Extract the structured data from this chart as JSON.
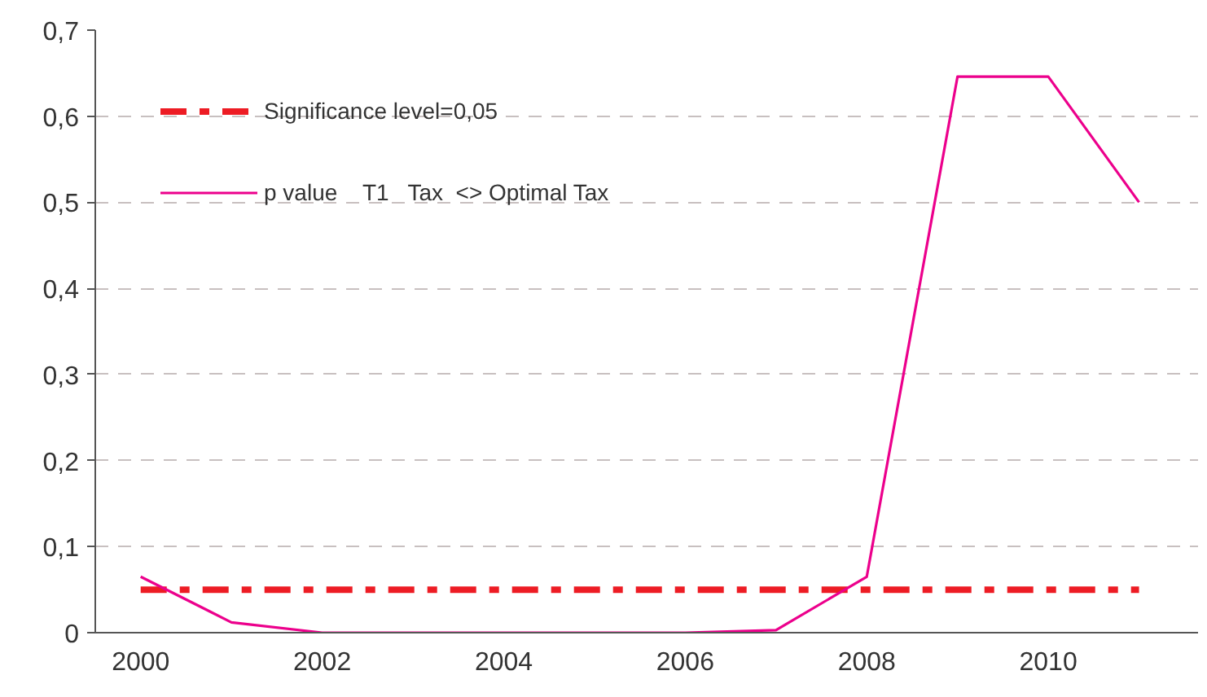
{
  "chart_data": {
    "type": "line",
    "categories": [
      "2000",
      null,
      "2002",
      null,
      "2004",
      null,
      "2006",
      null,
      "2008",
      null,
      "2010",
      null
    ],
    "series": [
      {
        "name": "Significance level=0,05",
        "color": "#ed1c24",
        "line_style": "dashdot",
        "values": [
          0.05,
          0.05,
          0.05,
          0.05,
          0.05,
          0.05,
          0.05,
          0.05,
          0.05,
          0.05,
          0.05,
          0.05
        ]
      },
      {
        "name": "p value    T1   Tax  <> Optimal Tax",
        "color": "#ec008c",
        "line_style": "solid",
        "values": [
          0.065,
          0.012,
          0,
          0,
          0,
          0,
          0,
          0.003,
          0.065,
          0.646,
          0.646,
          0.5
        ]
      }
    ],
    "ylim": [
      0,
      0.7
    ],
    "yticks": [
      0,
      {
        "value": 0.1,
        "label": "0,1"
      },
      {
        "value": 0.2,
        "label": "0,2"
      },
      {
        "value": 0.3,
        "label": "0,3"
      },
      {
        "value": 0.4,
        "label": "0,4"
      },
      {
        "value": 0.5,
        "label": "0,5"
      },
      {
        "value": 0.6,
        "label": "0,6"
      },
      {
        "value": 0.7,
        "label": "0,7"
      }
    ],
    "grid": "y",
    "legend": "top left",
    "marker": "none"
  }
}
